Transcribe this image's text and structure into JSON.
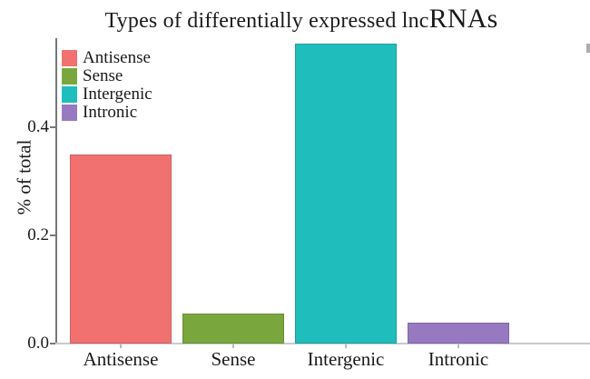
{
  "title": {
    "main": "Types of differentially expressed lnc",
    "suffix": "RNAs"
  },
  "chart_data": {
    "type": "bar",
    "title": "Types of differentially expressed lncRNAs",
    "xlabel": "",
    "ylabel": "% of total",
    "categories": [
      "Antisense",
      "Sense",
      "Intergenic",
      "Intronic"
    ],
    "values": [
      0.35,
      0.056,
      0.555,
      0.038
    ],
    "bar_colors": [
      "#F17170",
      "#7AA73D",
      "#1FBDBB",
      "#9779C1"
    ],
    "yticks": [
      0.0,
      0.2,
      0.4
    ],
    "ytick_labels": [
      "0.0",
      "0.2",
      "0.4"
    ],
    "ylim": [
      0,
      0.565
    ],
    "grid": false,
    "legend": {
      "position": "top-left",
      "entries": [
        {
          "label": "Antisense",
          "color": "#F17170"
        },
        {
          "label": "Sense",
          "color": "#7AA73D"
        },
        {
          "label": "Intergenic",
          "color": "#1FBDBB"
        },
        {
          "label": "Intronic",
          "color": "#9779C1"
        }
      ]
    }
  },
  "colors": {
    "axis": "#76787a",
    "baseline": "#c6cbce",
    "text": "#1a1a1a",
    "background": "#ffffff"
  }
}
